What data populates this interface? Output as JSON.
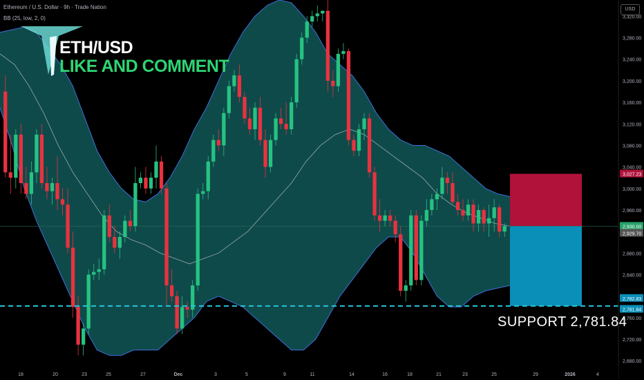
{
  "header": {
    "symbol_line": "Ethereum / U.S. Dollar · 9h · Trade Nation",
    "indicator_line": "BB (25, low, 2, 0)"
  },
  "overlay": {
    "title": "ETH/USD",
    "subtitle": "LIKE AND COMMENT",
    "support_text": "SUPPORT  2,781.84"
  },
  "axis": {
    "currency": "USD",
    "y_ticks": [
      "3,320.00",
      "3,280.00",
      "3,240.00",
      "3,200.00",
      "3,160.00",
      "3,120.00",
      "3,080.00",
      "3,040.00",
      "3,000.00",
      "2,960.00",
      "2,920.00",
      "2,880.00",
      "2,840.00",
      "2,800.00",
      "2,760.00",
      "2,720.00",
      "2,680.00"
    ],
    "x_ticks": [
      "18",
      "20",
      "23",
      "25",
      "27",
      "Dec",
      "3",
      "5",
      "9",
      "11",
      "14",
      "16",
      "18",
      "21",
      "23",
      "25",
      "29",
      "2026",
      "4"
    ]
  },
  "price_labels": {
    "target": "3,027.23",
    "current": "2,930.00",
    "bb_mid": "2,929.70",
    "support_a": "2,782.83",
    "support_b": "2,781.84"
  },
  "colors": {
    "up": "#26c281",
    "down": "#e8323f",
    "band_fill": "#0f4a4a",
    "band_line": "#3f6fd8",
    "support_line": "#26c6da",
    "target_box": "#b0123a",
    "stop_box": "#0a8fb8"
  },
  "chart_data": {
    "type": "candlestick",
    "title": "ETH/USD",
    "ylim": [
      2670,
      3350
    ],
    "x_labels": [
      "18",
      "20",
      "23",
      "25",
      "27",
      "Dec",
      "3",
      "5",
      "9",
      "11",
      "14",
      "16",
      "18",
      "21",
      "23",
      "25",
      "29",
      "2026",
      "4"
    ],
    "candles": [
      {
        "o": 3180,
        "h": 3210,
        "l": 3020,
        "c": 3030
      },
      {
        "o": 3030,
        "h": 3100,
        "l": 2990,
        "c": 3020
      },
      {
        "o": 3020,
        "h": 3110,
        "l": 3000,
        "c": 3100
      },
      {
        "o": 3100,
        "h": 3120,
        "l": 2990,
        "c": 3010
      },
      {
        "o": 3010,
        "h": 3040,
        "l": 2980,
        "c": 2990
      },
      {
        "o": 2990,
        "h": 3050,
        "l": 2970,
        "c": 3030
      },
      {
        "o": 3030,
        "h": 3110,
        "l": 3010,
        "c": 3100
      },
      {
        "o": 3100,
        "h": 3120,
        "l": 3000,
        "c": 3010
      },
      {
        "o": 3010,
        "h": 3040,
        "l": 2980,
        "c": 2995
      },
      {
        "o": 2995,
        "h": 3020,
        "l": 2970,
        "c": 3010
      },
      {
        "o": 3010,
        "h": 3060,
        "l": 2960,
        "c": 2980
      },
      {
        "o": 2980,
        "h": 3000,
        "l": 2950,
        "c": 2970
      },
      {
        "o": 2970,
        "h": 3000,
        "l": 2880,
        "c": 2890
      },
      {
        "o": 2890,
        "h": 2920,
        "l": 2760,
        "c": 2780
      },
      {
        "o": 2780,
        "h": 2800,
        "l": 2690,
        "c": 2710
      },
      {
        "o": 2710,
        "h": 2750,
        "l": 2690,
        "c": 2740
      },
      {
        "o": 2740,
        "h": 2850,
        "l": 2730,
        "c": 2840
      },
      {
        "o": 2840,
        "h": 2860,
        "l": 2830,
        "c": 2845
      },
      {
        "o": 2845,
        "h": 2870,
        "l": 2830,
        "c": 2850
      },
      {
        "o": 2850,
        "h": 2960,
        "l": 2840,
        "c": 2950
      },
      {
        "o": 2950,
        "h": 2970,
        "l": 2900,
        "c": 2910
      },
      {
        "o": 2910,
        "h": 2930,
        "l": 2880,
        "c": 2890
      },
      {
        "o": 2890,
        "h": 2920,
        "l": 2870,
        "c": 2910
      },
      {
        "o": 2910,
        "h": 2950,
        "l": 2900,
        "c": 2940
      },
      {
        "o": 2940,
        "h": 2960,
        "l": 2920,
        "c": 2930
      },
      {
        "o": 2930,
        "h": 3040,
        "l": 2920,
        "c": 3010
      },
      {
        "o": 3010,
        "h": 3030,
        "l": 3000,
        "c": 3020
      },
      {
        "o": 3020,
        "h": 3040,
        "l": 2990,
        "c": 3000
      },
      {
        "o": 3000,
        "h": 3030,
        "l": 2990,
        "c": 3020
      },
      {
        "o": 3020,
        "h": 3080,
        "l": 3000,
        "c": 3050
      },
      {
        "o": 3050,
        "h": 3060,
        "l": 2990,
        "c": 3000
      },
      {
        "o": 3000,
        "h": 3010,
        "l": 2780,
        "c": 2820
      },
      {
        "o": 2820,
        "h": 2850,
        "l": 2790,
        "c": 2800
      },
      {
        "o": 2800,
        "h": 2810,
        "l": 2730,
        "c": 2740
      },
      {
        "o": 2740,
        "h": 2800,
        "l": 2730,
        "c": 2780
      },
      {
        "o": 2780,
        "h": 2790,
        "l": 2760,
        "c": 2775
      },
      {
        "o": 2775,
        "h": 2830,
        "l": 2760,
        "c": 2820
      },
      {
        "o": 2820,
        "h": 3000,
        "l": 2810,
        "c": 2990
      },
      {
        "o": 2990,
        "h": 3010,
        "l": 2980,
        "c": 2995
      },
      {
        "o": 2995,
        "h": 3060,
        "l": 2980,
        "c": 3050
      },
      {
        "o": 3050,
        "h": 3100,
        "l": 3040,
        "c": 3090
      },
      {
        "o": 3090,
        "h": 3110,
        "l": 3070,
        "c": 3080
      },
      {
        "o": 3080,
        "h": 3150,
        "l": 3060,
        "c": 3140
      },
      {
        "o": 3140,
        "h": 3200,
        "l": 3130,
        "c": 3190
      },
      {
        "o": 3190,
        "h": 3220,
        "l": 3180,
        "c": 3210
      },
      {
        "o": 3210,
        "h": 3230,
        "l": 3160,
        "c": 3170
      },
      {
        "o": 3170,
        "h": 3180,
        "l": 3120,
        "c": 3130
      },
      {
        "o": 3130,
        "h": 3150,
        "l": 3100,
        "c": 3110
      },
      {
        "o": 3110,
        "h": 3160,
        "l": 3090,
        "c": 3150
      },
      {
        "o": 3150,
        "h": 3170,
        "l": 3080,
        "c": 3090
      },
      {
        "o": 3090,
        "h": 3110,
        "l": 3020,
        "c": 3040
      },
      {
        "o": 3040,
        "h": 3100,
        "l": 3030,
        "c": 3090
      },
      {
        "o": 3090,
        "h": 3140,
        "l": 3080,
        "c": 3130
      },
      {
        "o": 3130,
        "h": 3150,
        "l": 3110,
        "c": 3120
      },
      {
        "o": 3120,
        "h": 3160,
        "l": 3100,
        "c": 3110
      },
      {
        "o": 3110,
        "h": 3170,
        "l": 3100,
        "c": 3160
      },
      {
        "o": 3160,
        "h": 3250,
        "l": 3150,
        "c": 3240
      },
      {
        "o": 3240,
        "h": 3290,
        "l": 3230,
        "c": 3280
      },
      {
        "o": 3280,
        "h": 3320,
        "l": 3270,
        "c": 3310
      },
      {
        "o": 3310,
        "h": 3330,
        "l": 3300,
        "c": 3320
      },
      {
        "o": 3320,
        "h": 3340,
        "l": 3310,
        "c": 3325
      },
      {
        "o": 3325,
        "h": 3330,
        "l": 3310,
        "c": 3330
      },
      {
        "o": 3330,
        "h": 3350,
        "l": 3180,
        "c": 3200
      },
      {
        "o": 3200,
        "h": 3220,
        "l": 3170,
        "c": 3190
      },
      {
        "o": 3190,
        "h": 3260,
        "l": 3180,
        "c": 3250
      },
      {
        "o": 3250,
        "h": 3270,
        "l": 3240,
        "c": 3255
      },
      {
        "o": 3255,
        "h": 3260,
        "l": 3080,
        "c": 3090
      },
      {
        "o": 3090,
        "h": 3100,
        "l": 3060,
        "c": 3070
      },
      {
        "o": 3070,
        "h": 3120,
        "l": 3060,
        "c": 3110
      },
      {
        "o": 3110,
        "h": 3140,
        "l": 3090,
        "c": 3130
      },
      {
        "o": 3130,
        "h": 3140,
        "l": 3020,
        "c": 3030
      },
      {
        "o": 3030,
        "h": 3040,
        "l": 2940,
        "c": 2950
      },
      {
        "o": 2950,
        "h": 2980,
        "l": 2920,
        "c": 2940
      },
      {
        "o": 2940,
        "h": 2960,
        "l": 2930,
        "c": 2950
      },
      {
        "o": 2950,
        "h": 2960,
        "l": 2930,
        "c": 2940
      },
      {
        "o": 2940,
        "h": 2950,
        "l": 2900,
        "c": 2915
      },
      {
        "o": 2915,
        "h": 2930,
        "l": 2800,
        "c": 2810
      },
      {
        "o": 2810,
        "h": 2830,
        "l": 2790,
        "c": 2820
      },
      {
        "o": 2820,
        "h": 2960,
        "l": 2810,
        "c": 2950
      },
      {
        "o": 2950,
        "h": 2960,
        "l": 2820,
        "c": 2830
      },
      {
        "o": 2830,
        "h": 2950,
        "l": 2820,
        "c": 2940
      },
      {
        "o": 2940,
        "h": 2980,
        "l": 2930,
        "c": 2960
      },
      {
        "o": 2960,
        "h": 2990,
        "l": 2950,
        "c": 2980
      },
      {
        "o": 2980,
        "h": 3000,
        "l": 2960,
        "c": 2990
      },
      {
        "o": 2990,
        "h": 3040,
        "l": 2980,
        "c": 3020
      },
      {
        "o": 3020,
        "h": 3030,
        "l": 2990,
        "c": 3010
      },
      {
        "o": 3010,
        "h": 3030,
        "l": 2970,
        "c": 2975
      },
      {
        "o": 2975,
        "h": 2990,
        "l": 2950,
        "c": 2960
      },
      {
        "o": 2960,
        "h": 2980,
        "l": 2940,
        "c": 2950
      },
      {
        "o": 2950,
        "h": 2980,
        "l": 2940,
        "c": 2970
      },
      {
        "o": 2970,
        "h": 2980,
        "l": 2920,
        "c": 2935
      },
      {
        "o": 2935,
        "h": 2970,
        "l": 2920,
        "c": 2960
      },
      {
        "o": 2960,
        "h": 2965,
        "l": 2920,
        "c": 2935
      },
      {
        "o": 2935,
        "h": 2970,
        "l": 2910,
        "c": 2945
      },
      {
        "o": 2945,
        "h": 2980,
        "l": 2920,
        "c": 2965
      },
      {
        "o": 2965,
        "h": 2970,
        "l": 2910,
        "c": 2920
      },
      {
        "o": 2920,
        "h": 2935,
        "l": 2910,
        "c": 2930
      }
    ],
    "bollinger_upper": [
      3290,
      3295,
      3300,
      3290,
      3260,
      3230,
      3190,
      3130,
      3070,
      3030,
      3000,
      2980,
      2975,
      2990,
      3020,
      3060,
      3110,
      3150,
      3200,
      3250,
      3290,
      3320,
      3340,
      3350,
      3345,
      3320,
      3290,
      3250,
      3230,
      3210,
      3180,
      3140,
      3110,
      3090,
      3080,
      3080,
      3070,
      3060,
      3040,
      3020,
      3000,
      2990,
      2985
    ],
    "bollinger_lower": [
      3150,
      3080,
      3000,
      2940,
      2890,
      2840,
      2790,
      2740,
      2700,
      2690,
      2690,
      2700,
      2700,
      2700,
      2720,
      2740,
      2760,
      2790,
      2800,
      2790,
      2780,
      2760,
      2740,
      2720,
      2700,
      2700,
      2720,
      2760,
      2800,
      2830,
      2860,
      2890,
      2910,
      2910,
      2880,
      2840,
      2800,
      2780,
      2780,
      2800,
      2810,
      2815,
      2820
    ],
    "bollinger_mid": [
      3250,
      3230,
      3190,
      3140,
      3080,
      3030,
      2990,
      2950,
      2920,
      2905,
      2895,
      2880,
      2870,
      2860,
      2870,
      2880,
      2900,
      2920,
      2950,
      2980,
      3010,
      3050,
      3080,
      3100,
      3110,
      3100,
      3080,
      3060,
      3040,
      3020,
      2990,
      2970,
      2955,
      2945,
      2935,
      2930
    ],
    "support": 2781.84,
    "target": 3027.23,
    "entry": 2930.0
  }
}
